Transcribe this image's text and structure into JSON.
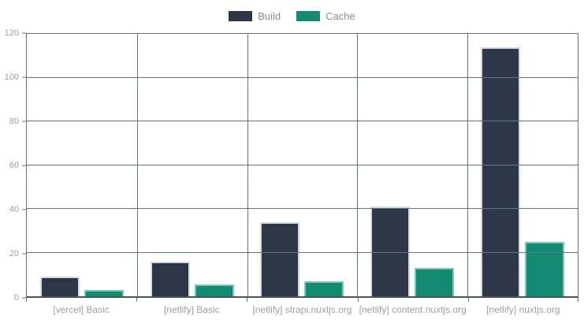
{
  "chart_data": {
    "type": "bar",
    "title": "",
    "xlabel": "",
    "ylabel": "",
    "categories": [
      "[vercel] Basic",
      "[netlify] Basic",
      "[netlify] strapi.nuxtjs.org",
      "[netlify] content.nuxtjs.org",
      "[netlify] nuxtjs.org"
    ],
    "series": [
      {
        "name": "Build",
        "values": [
          9,
          16,
          34,
          41,
          114
        ]
      },
      {
        "name": "Cache",
        "values": [
          3,
          5.5,
          7,
          13,
          25
        ]
      }
    ],
    "ylim": [
      0,
      120
    ],
    "y_ticks": [
      0,
      20,
      40,
      60,
      80,
      100,
      120
    ],
    "grid": "on",
    "legend_position": "top-center",
    "colors": {
      "build_fill": "#2d3748",
      "build_border": "#d5dbe1",
      "cache_fill": "#148a75",
      "cache_border": "#79c7b5",
      "gridline": "#5d7676",
      "axis_baseline": "#44585c",
      "tick_text": "#9e9e9e",
      "legend_text": "#8a8a8a"
    }
  }
}
